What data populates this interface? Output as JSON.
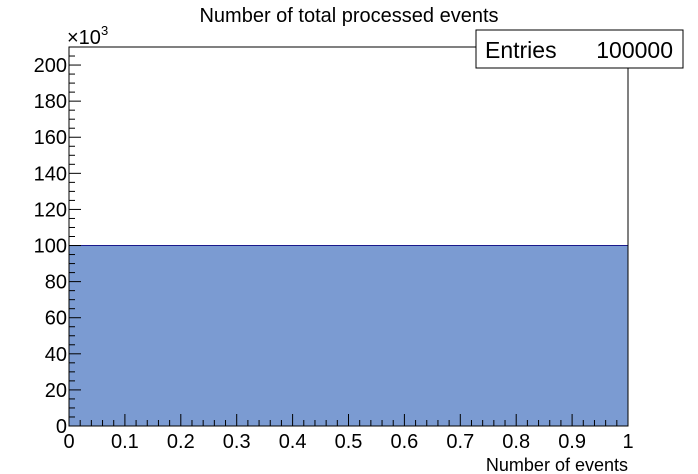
{
  "chart_data": {
    "type": "bar",
    "title": "Number of total processed events",
    "xlabel": "Number of events",
    "ylabel": "",
    "y_multiplier_label": "×10",
    "y_multiplier_exp": "3",
    "xlim": [
      0,
      1
    ],
    "ylim": [
      0,
      210
    ],
    "x_ticks": [
      0,
      0.1,
      0.2,
      0.3,
      0.4,
      0.5,
      0.6,
      0.7,
      0.8,
      0.9,
      1
    ],
    "x_tick_labels": [
      "0",
      "0.1",
      "0.2",
      "0.3",
      "0.4",
      "0.5",
      "0.6",
      "0.7",
      "0.8",
      "0.9",
      "1"
    ],
    "y_ticks": [
      0,
      20,
      40,
      60,
      80,
      100,
      120,
      140,
      160,
      180,
      200
    ],
    "y_tick_labels": [
      "0",
      "20",
      "40",
      "60",
      "80",
      "100",
      "120",
      "140",
      "160",
      "180",
      "200"
    ],
    "bins": [
      {
        "x0": 0,
        "x1": 1,
        "value": 100
      }
    ],
    "fill_color": "#7b9bd2",
    "line_color": "#1a1a8c",
    "grid": false,
    "legend": "none",
    "stats_box": {
      "label": "Entries",
      "value": "100000",
      "placement": "top-right"
    }
  }
}
